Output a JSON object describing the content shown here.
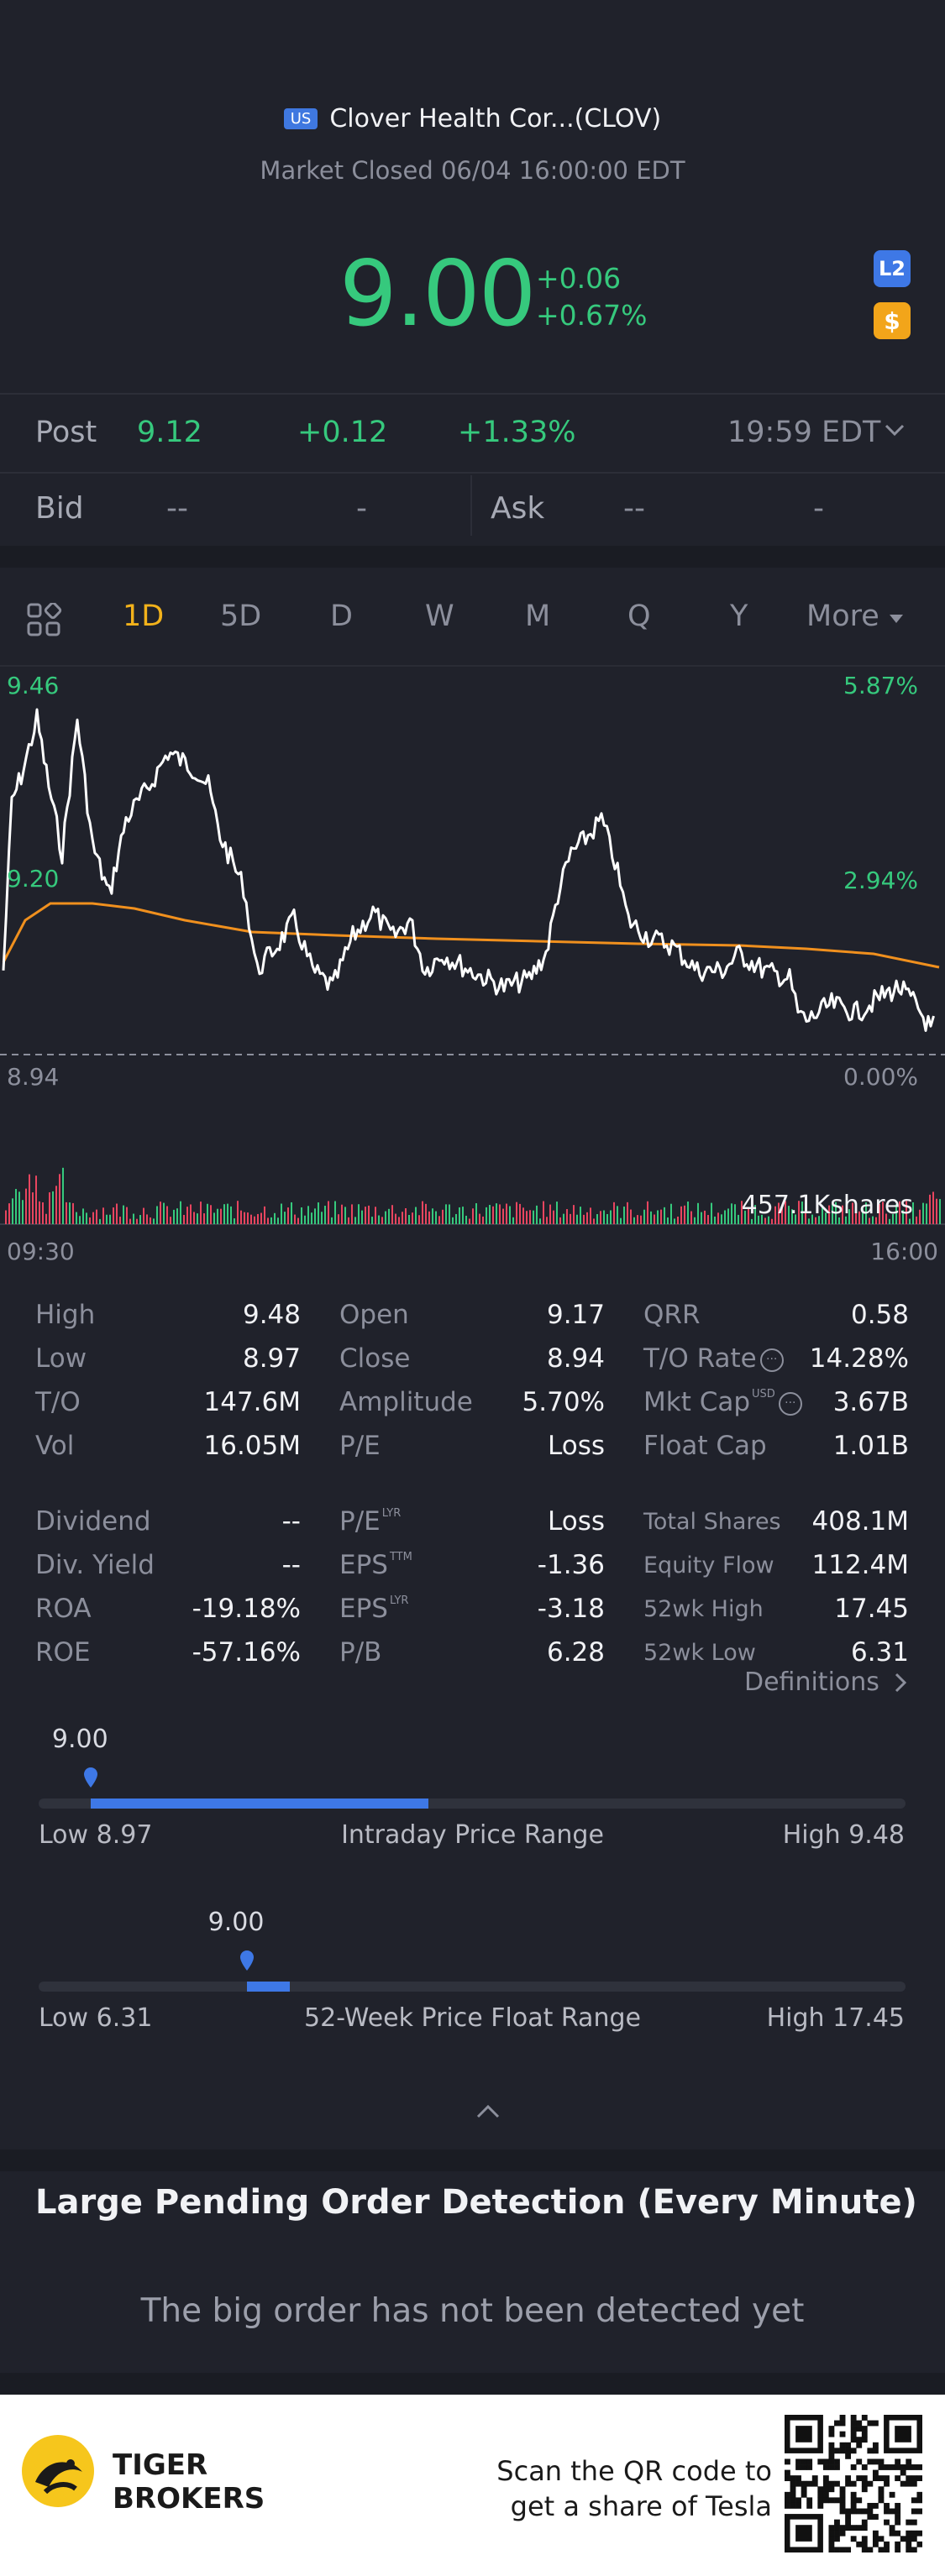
{
  "header": {
    "market_badge": "US",
    "title": "Clover Health Cor...(CLOV)",
    "status": "Market Closed 06/04 16:00:00 EDT"
  },
  "quote": {
    "price": "9.00",
    "change": "+0.06",
    "change_pct": "+0.67%",
    "l2_icon": "L2",
    "dollar_icon": "$"
  },
  "post": {
    "label": "Post",
    "price": "9.12",
    "change": "+0.12",
    "change_pct": "+1.33%",
    "time": "19:59 EDT"
  },
  "bid_ask": {
    "bid_label": "Bid",
    "bid_price": "--",
    "bid_size": "-",
    "ask_label": "Ask",
    "ask_price": "--",
    "ask_size": "-"
  },
  "tabs": [
    "1D",
    "5D",
    "D",
    "W",
    "M",
    "Q",
    "Y",
    "More"
  ],
  "chart": {
    "y_top_left": "9.46",
    "y_mid_left": "9.20",
    "y_bot_left": "8.94",
    "y_top_right": "5.87%",
    "y_mid_right": "2.94%",
    "y_bot_right": "0.00%",
    "volume_label": "457.1Kshares",
    "time_start": "09:30",
    "time_end": "16:00",
    "colors": {
      "price_line": "#ffffff",
      "avg_line": "#f0901e",
      "up": "#36c97d",
      "down": "#e8455f"
    }
  },
  "stats": {
    "col1": [
      {
        "label": "High",
        "value": "9.48"
      },
      {
        "label": "Low",
        "value": "8.97"
      },
      {
        "label": "T/O",
        "value": "147.6M"
      },
      {
        "label": "Vol",
        "value": "16.05M"
      },
      {
        "label": "Dividend",
        "value": "--"
      },
      {
        "label": "Div. Yield",
        "value": "--"
      },
      {
        "label": "ROA",
        "value": "-19.18%"
      },
      {
        "label": "ROE",
        "value": "-57.16%"
      }
    ],
    "col2": [
      {
        "label": "Open",
        "value": "9.17"
      },
      {
        "label": "Close",
        "value": "8.94"
      },
      {
        "label": "Amplitude",
        "value": "5.70%"
      },
      {
        "label": "P/E",
        "value": "Loss"
      },
      {
        "label": "P/E",
        "sup": "LYR",
        "value": "Loss"
      },
      {
        "label": "EPS",
        "sup": "TTM",
        "value": "-1.36"
      },
      {
        "label": "EPS",
        "sup": "LYR",
        "value": "-3.18"
      },
      {
        "label": "P/B",
        "value": "6.28"
      }
    ],
    "col3": [
      {
        "label": "QRR",
        "value": "0.58"
      },
      {
        "label": "T/O Rate",
        "value": "14.28%"
      },
      {
        "label": "Mkt Cap",
        "sup": "USD",
        "value": "3.67B"
      },
      {
        "label": "Float Cap",
        "value": "1.01B"
      },
      {
        "label": "Total Shares",
        "value": "408.1M"
      },
      {
        "label": "Equity Flow",
        "value": "112.4M"
      },
      {
        "label": "52wk High",
        "value": "17.45"
      },
      {
        "label": "52wk Low",
        "value": "6.31"
      }
    ],
    "definitions": "Definitions"
  },
  "intraday_range": {
    "current": "9.00",
    "low_label": "Low 8.97",
    "title": "Intraday Price Range",
    "high_label": "High 9.48",
    "position_fraction": 0.06,
    "fill_fraction": 0.39
  },
  "week52_range": {
    "current": "9.00",
    "low_label": "Low 6.31",
    "title": "52-Week Price Float Range",
    "high_label": "High 17.45",
    "position_fraction": 0.24,
    "fill_fraction": 0.05
  },
  "pending": {
    "title": "Large Pending Order Detection (Every Minute)",
    "message": "The big order has not been detected yet"
  },
  "promo": {
    "brand_line1": "TIGER",
    "brand_line2": "BROKERS",
    "text_line1": "Scan the QR code to",
    "text_line2": "get a share of Tesla"
  }
}
